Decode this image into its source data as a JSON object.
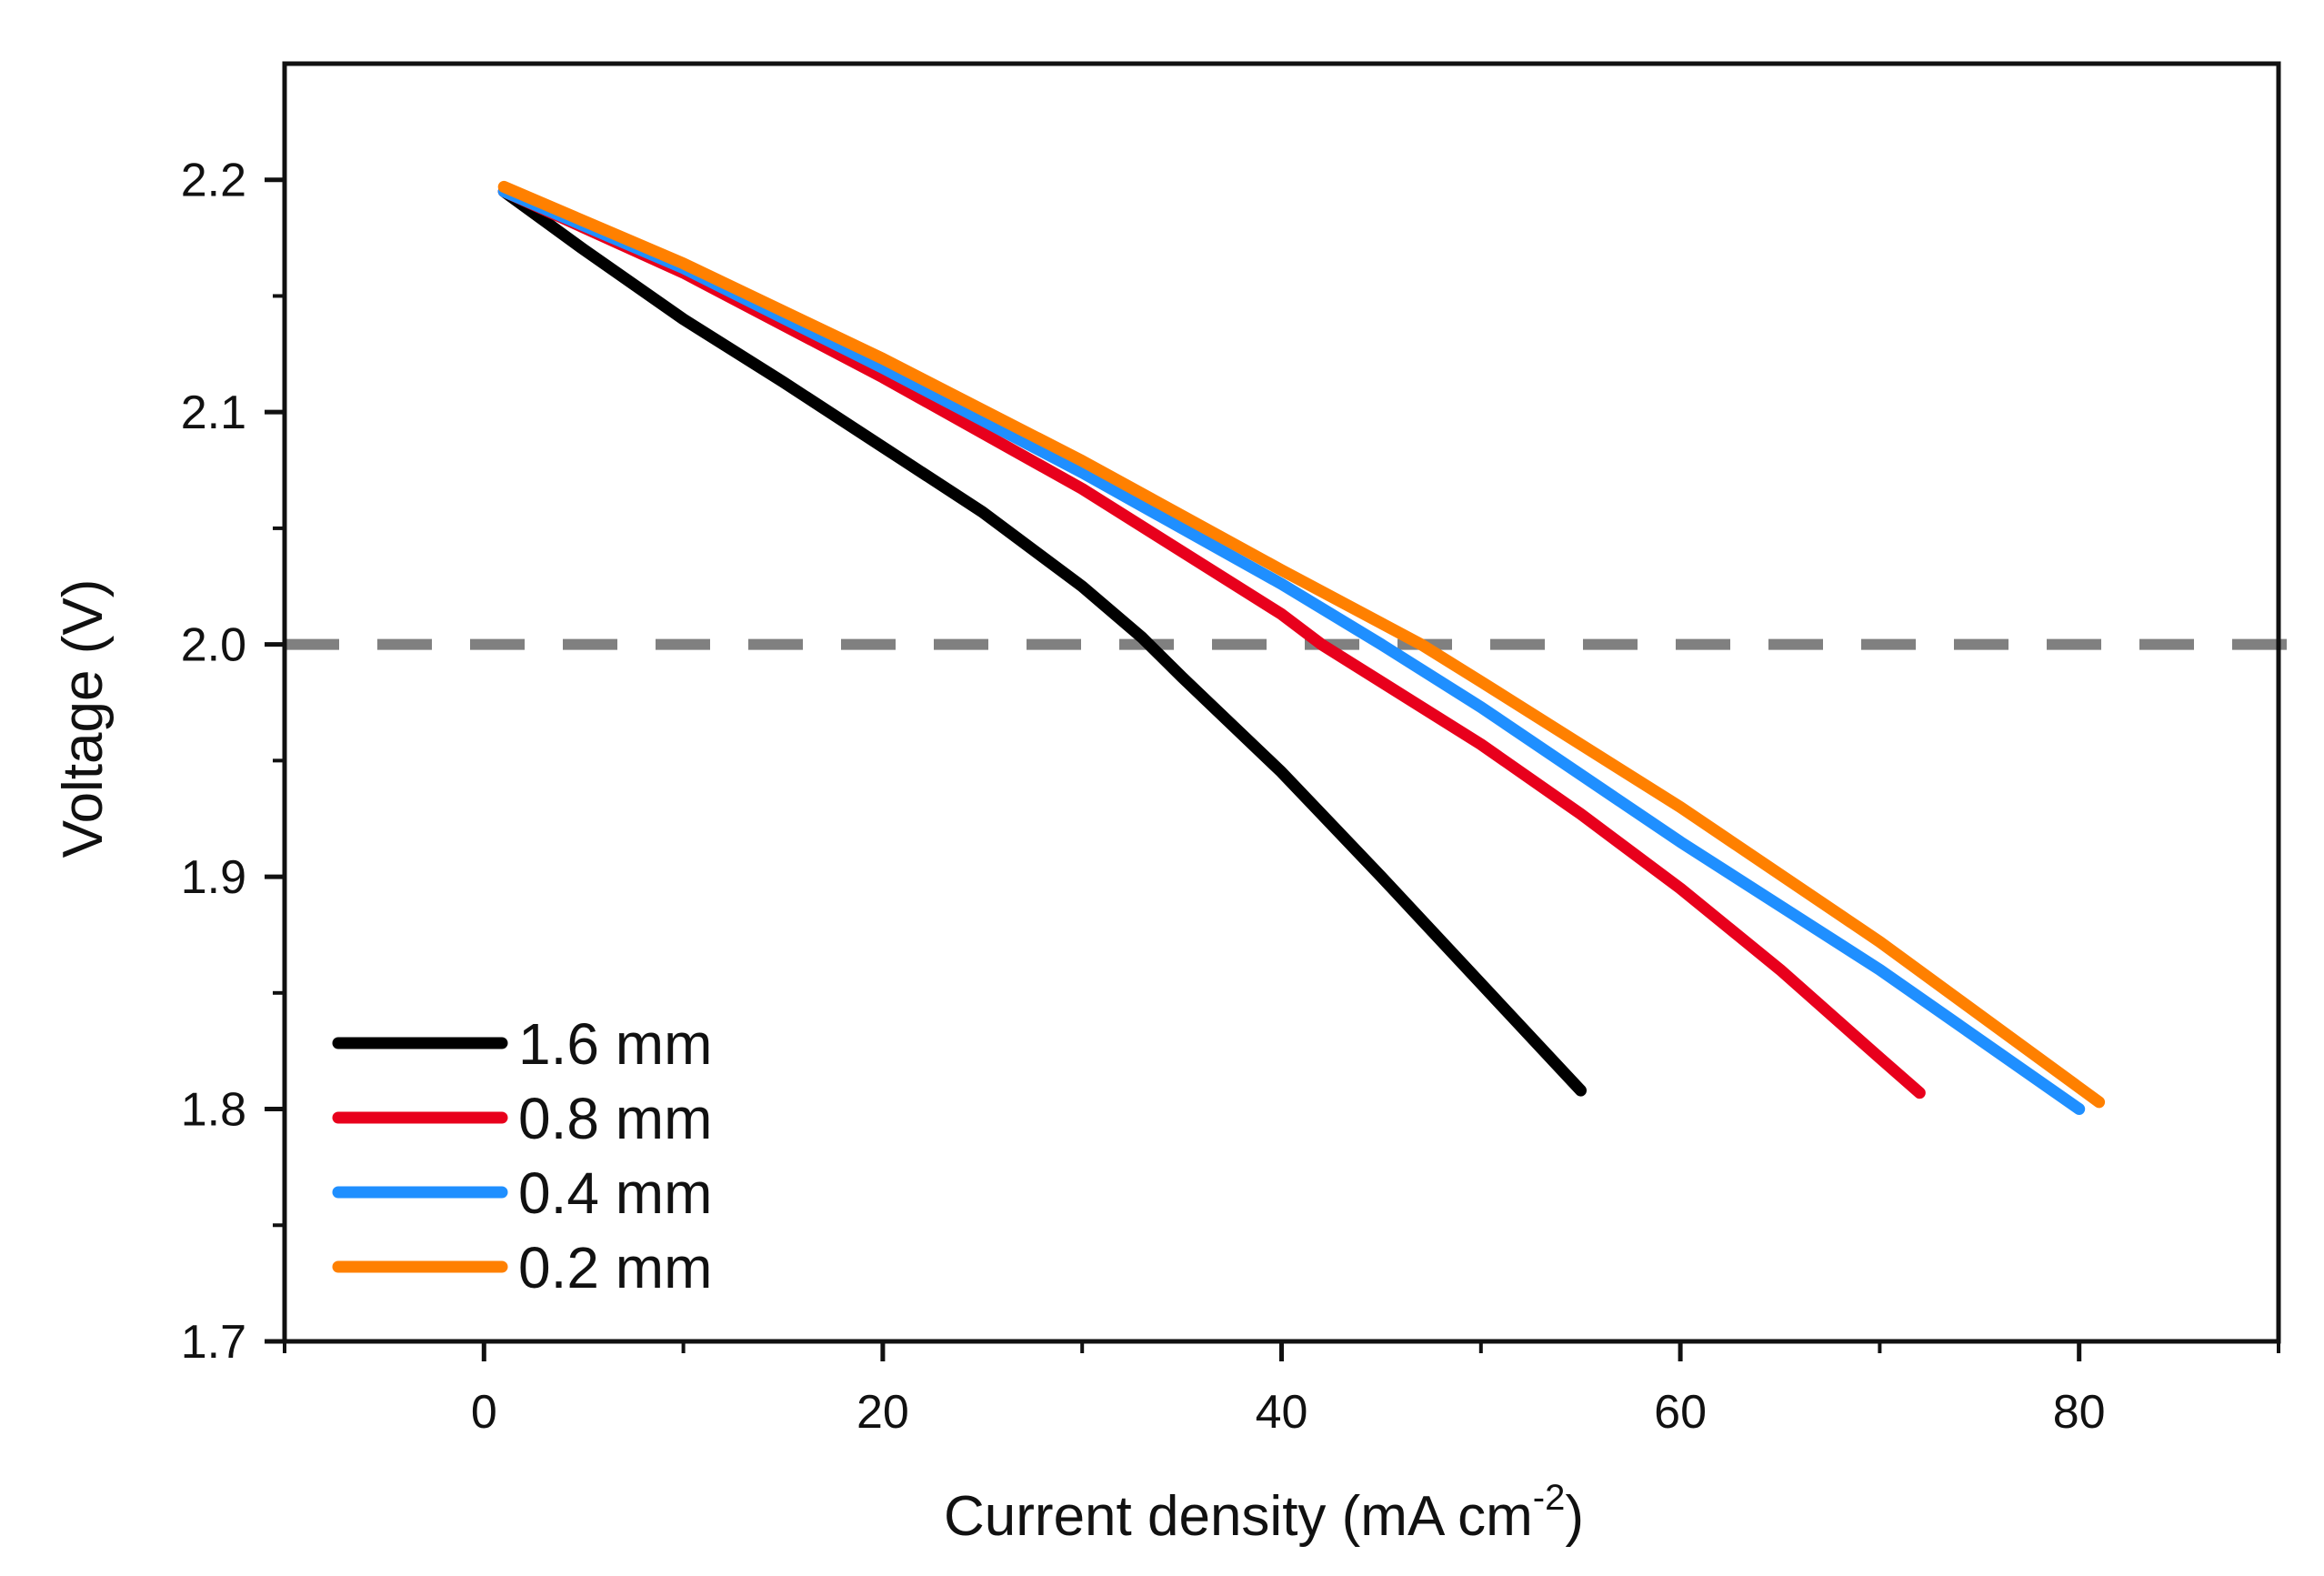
{
  "chart_data": {
    "type": "line",
    "title": "",
    "xlabel": "Current density (mA cm",
    "xlabel_superscript": "-2",
    "xlabel_suffix": ")",
    "ylabel": "Voltage (V)",
    "xlim": [
      -10,
      90
    ],
    "ylim": [
      1.7,
      2.25
    ],
    "x_ticks": [
      0,
      20,
      40,
      60,
      80
    ],
    "x_tick_labels": [
      "0",
      "20",
      "40",
      "60",
      "80"
    ],
    "x_minor_ticks": [
      -10,
      10,
      30,
      50,
      70,
      90
    ],
    "y_ticks": [
      1.7,
      1.8,
      1.9,
      2.0,
      2.1,
      2.2
    ],
    "y_tick_labels": [
      "1.7",
      "1.8",
      "1.9",
      "2.0",
      "2.1",
      "2.2"
    ],
    "y_minor_ticks": [
      1.75,
      1.85,
      1.95,
      2.05,
      2.15
    ],
    "grid": false,
    "legend_position": "bottom-left",
    "reference_line": {
      "y": 2.0,
      "style": "dashed",
      "color": "#808080"
    },
    "series": [
      {
        "name": "1.6 mm",
        "color": "#000000",
        "x": [
          1,
          5,
          10,
          15,
          20,
          25,
          30,
          33,
          35,
          40,
          45,
          50,
          55
        ],
        "y": [
          2.195,
          2.17,
          2.14,
          2.113,
          2.085,
          2.057,
          2.025,
          2.003,
          1.986,
          1.945,
          1.9,
          1.854,
          1.808
        ]
      },
      {
        "name": "0.8 mm",
        "color": "#e8001c",
        "x": [
          1,
          10,
          20,
          30,
          40,
          42,
          50,
          55,
          60,
          65,
          70,
          72
        ],
        "y": [
          2.195,
          2.16,
          2.115,
          2.067,
          2.013,
          2.0,
          1.957,
          1.927,
          1.895,
          1.86,
          1.822,
          1.807
        ]
      },
      {
        "name": "0.4 mm",
        "color": "#1f8fff",
        "x": [
          1,
          10,
          20,
          30,
          40,
          45,
          50,
          60,
          70,
          80
        ],
        "y": [
          2.195,
          2.162,
          2.119,
          2.074,
          2.026,
          2.0,
          1.973,
          1.915,
          1.86,
          1.8
        ]
      },
      {
        "name": "0.2 mm",
        "color": "#ff8000",
        "x": [
          1,
          10,
          20,
          30,
          40,
          47,
          50,
          60,
          70,
          81
        ],
        "y": [
          2.197,
          2.164,
          2.123,
          2.079,
          2.032,
          2.0,
          1.984,
          1.93,
          1.872,
          1.803
        ]
      }
    ]
  }
}
